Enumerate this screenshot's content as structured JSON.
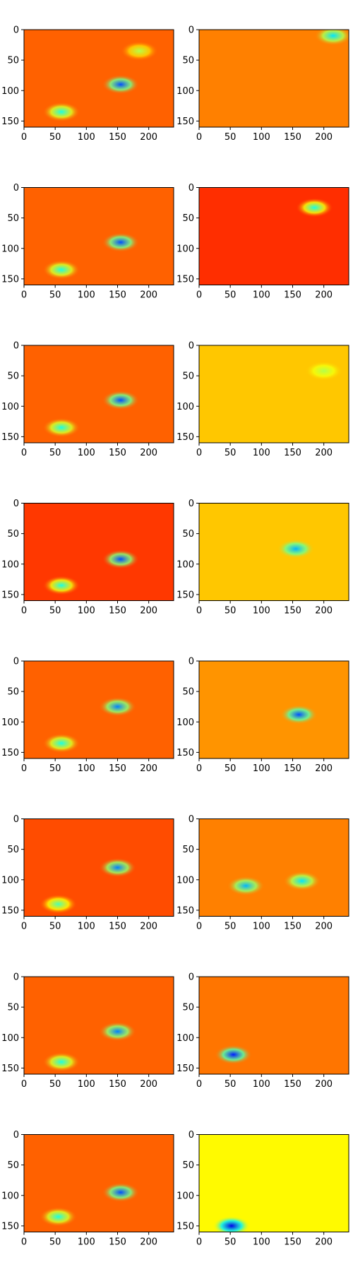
{
  "figure": {
    "rows": 8,
    "cols": 2,
    "colormap": "jet",
    "background": "#ffffff"
  },
  "chart_data": [
    {
      "type": "heatmap",
      "row": 1,
      "col": 1,
      "x_ticks": [
        0,
        50,
        100,
        150,
        200
      ],
      "y_ticks": [
        0,
        50,
        100,
        150
      ],
      "xlim": [
        0,
        240
      ],
      "ylim": [
        160,
        0
      ],
      "base_level": 0.78,
      "hotspots": [
        {
          "x": 155,
          "y": 90,
          "v": 0.2
        },
        {
          "x": 60,
          "y": 135,
          "v": 0.4
        },
        {
          "x": 185,
          "y": 35,
          "v": 0.55
        }
      ]
    },
    {
      "type": "heatmap",
      "row": 1,
      "col": 2,
      "x_ticks": [
        0,
        50,
        100,
        150,
        200
      ],
      "y_ticks": [
        0,
        50,
        100,
        150
      ],
      "xlim": [
        0,
        240
      ],
      "ylim": [
        160,
        0
      ],
      "base_level": 0.75,
      "hotspots": [
        {
          "x": 215,
          "y": 10,
          "v": 0.35
        }
      ]
    },
    {
      "type": "heatmap",
      "row": 2,
      "col": 1,
      "x_ticks": [
        0,
        50,
        100,
        150,
        200
      ],
      "y_ticks": [
        0,
        50,
        100,
        150
      ],
      "xlim": [
        0,
        240
      ],
      "ylim": [
        160,
        0
      ],
      "base_level": 0.78,
      "hotspots": [
        {
          "x": 155,
          "y": 90,
          "v": 0.2
        },
        {
          "x": 60,
          "y": 135,
          "v": 0.4
        }
      ]
    },
    {
      "type": "heatmap",
      "row": 2,
      "col": 2,
      "x_ticks": [
        0,
        50,
        100,
        150,
        200
      ],
      "y_ticks": [
        0,
        50,
        100,
        150
      ],
      "xlim": [
        0,
        240
      ],
      "ylim": [
        160,
        0
      ],
      "base_level": 0.83,
      "hotspots": [
        {
          "x": 185,
          "y": 33,
          "v": 0.4
        }
      ]
    },
    {
      "type": "heatmap",
      "row": 3,
      "col": 1,
      "x_ticks": [
        0,
        50,
        100,
        150,
        200
      ],
      "y_ticks": [
        0,
        50,
        100,
        150
      ],
      "xlim": [
        0,
        240
      ],
      "ylim": [
        160,
        0
      ],
      "base_level": 0.78,
      "hotspots": [
        {
          "x": 155,
          "y": 90,
          "v": 0.2
        },
        {
          "x": 60,
          "y": 135,
          "v": 0.4
        }
      ]
    },
    {
      "type": "heatmap",
      "row": 3,
      "col": 2,
      "x_ticks": [
        0,
        50,
        100,
        150,
        200
      ],
      "y_ticks": [
        0,
        50,
        100,
        150
      ],
      "xlim": [
        0,
        240
      ],
      "ylim": [
        160,
        0
      ],
      "base_level": 0.68,
      "hotspots": [
        {
          "x": 200,
          "y": 42,
          "v": 0.55
        }
      ]
    },
    {
      "type": "heatmap",
      "row": 4,
      "col": 1,
      "x_ticks": [
        0,
        50,
        100,
        150,
        200
      ],
      "y_ticks": [
        0,
        50,
        100,
        150
      ],
      "xlim": [
        0,
        240
      ],
      "ylim": [
        160,
        0
      ],
      "base_level": 0.82,
      "hotspots": [
        {
          "x": 155,
          "y": 92,
          "v": 0.2
        },
        {
          "x": 60,
          "y": 135,
          "v": 0.4
        }
      ]
    },
    {
      "type": "heatmap",
      "row": 4,
      "col": 2,
      "x_ticks": [
        0,
        50,
        100,
        150,
        200
      ],
      "y_ticks": [
        0,
        50,
        100,
        150
      ],
      "xlim": [
        0,
        240
      ],
      "ylim": [
        160,
        0
      ],
      "base_level": 0.68,
      "hotspots": [
        {
          "x": 155,
          "y": 75,
          "v": 0.3
        }
      ]
    },
    {
      "type": "heatmap",
      "row": 5,
      "col": 1,
      "x_ticks": [
        0,
        50,
        100,
        150,
        200
      ],
      "y_ticks": [
        0,
        50,
        100,
        150
      ],
      "xlim": [
        0,
        240
      ],
      "ylim": [
        160,
        0
      ],
      "base_level": 0.78,
      "hotspots": [
        {
          "x": 150,
          "y": 75,
          "v": 0.25
        },
        {
          "x": 60,
          "y": 135,
          "v": 0.4
        }
      ]
    },
    {
      "type": "heatmap",
      "row": 5,
      "col": 2,
      "x_ticks": [
        0,
        50,
        100,
        150,
        200
      ],
      "y_ticks": [
        0,
        50,
        100,
        150
      ],
      "xlim": [
        0,
        240
      ],
      "ylim": [
        160,
        0
      ],
      "base_level": 0.73,
      "hotspots": [
        {
          "x": 160,
          "y": 88,
          "v": 0.2
        }
      ]
    },
    {
      "type": "heatmap",
      "row": 6,
      "col": 1,
      "x_ticks": [
        0,
        50,
        100,
        150,
        200
      ],
      "y_ticks": [
        0,
        50,
        100,
        150
      ],
      "xlim": [
        0,
        240
      ],
      "ylim": [
        160,
        0
      ],
      "base_level": 0.8,
      "hotspots": [
        {
          "x": 150,
          "y": 80,
          "v": 0.25
        },
        {
          "x": 55,
          "y": 140,
          "v": 0.45
        }
      ]
    },
    {
      "type": "heatmap",
      "row": 6,
      "col": 2,
      "x_ticks": [
        0,
        50,
        100,
        150,
        200
      ],
      "y_ticks": [
        0,
        50,
        100,
        150
      ],
      "xlim": [
        0,
        240
      ],
      "ylim": [
        160,
        0
      ],
      "base_level": 0.75,
      "hotspots": [
        {
          "x": 75,
          "y": 110,
          "v": 0.3
        },
        {
          "x": 165,
          "y": 102,
          "v": 0.35
        }
      ]
    },
    {
      "type": "heatmap",
      "row": 7,
      "col": 1,
      "x_ticks": [
        0,
        50,
        100,
        150,
        200
      ],
      "y_ticks": [
        0,
        50,
        100,
        150
      ],
      "xlim": [
        0,
        240
      ],
      "ylim": [
        160,
        0
      ],
      "base_level": 0.78,
      "hotspots": [
        {
          "x": 150,
          "y": 90,
          "v": 0.25
        },
        {
          "x": 60,
          "y": 140,
          "v": 0.4
        }
      ]
    },
    {
      "type": "heatmap",
      "row": 7,
      "col": 2,
      "x_ticks": [
        0,
        50,
        100,
        150,
        200
      ],
      "y_ticks": [
        0,
        50,
        100,
        150
      ],
      "xlim": [
        0,
        240
      ],
      "ylim": [
        160,
        0
      ],
      "base_level": 0.76,
      "hotspots": [
        {
          "x": 55,
          "y": 128,
          "v": 0.15
        }
      ]
    },
    {
      "type": "heatmap",
      "row": 8,
      "col": 1,
      "x_ticks": [
        0,
        50,
        100,
        150,
        200
      ],
      "y_ticks": [
        0,
        50,
        100,
        150
      ],
      "xlim": [
        0,
        240
      ],
      "ylim": [
        160,
        0
      ],
      "base_level": 0.78,
      "hotspots": [
        {
          "x": 155,
          "y": 95,
          "v": 0.2
        },
        {
          "x": 55,
          "y": 135,
          "v": 0.4
        }
      ]
    },
    {
      "type": "heatmap",
      "row": 8,
      "col": 2,
      "x_ticks": [
        0,
        50,
        100,
        150,
        200
      ],
      "y_ticks": [
        0,
        50,
        100,
        150
      ],
      "xlim": [
        0,
        240
      ],
      "ylim": [
        160,
        0
      ],
      "base_level": 0.63,
      "hotspots": [
        {
          "x": 52,
          "y": 150,
          "v": 0.1
        }
      ]
    }
  ]
}
